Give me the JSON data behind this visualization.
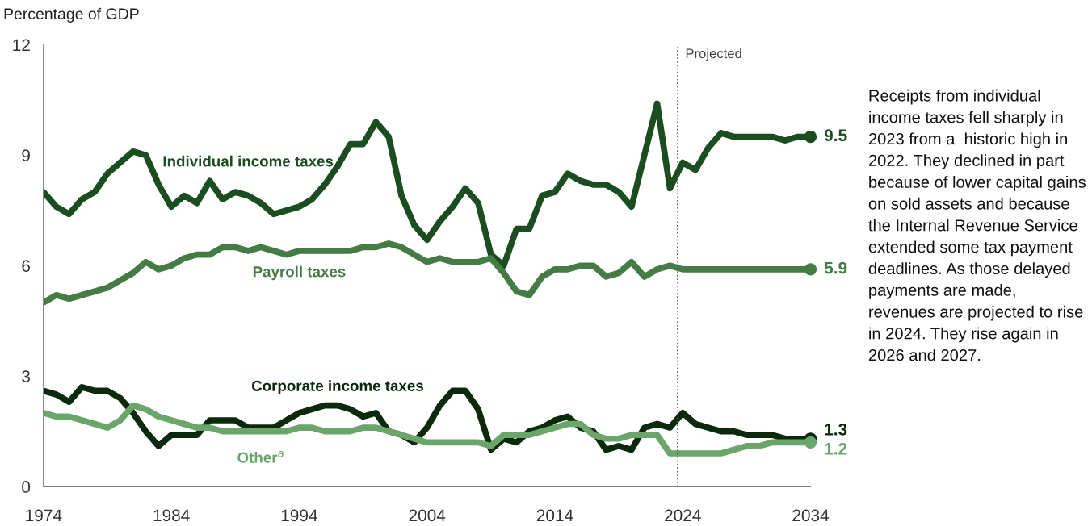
{
  "chart_data": {
    "type": "line",
    "ylabel": "Percentage of GDP",
    "x": [
      1974,
      1975,
      1976,
      1977,
      1978,
      1979,
      1980,
      1981,
      1982,
      1983,
      1984,
      1985,
      1986,
      1987,
      1988,
      1989,
      1990,
      1991,
      1992,
      1993,
      1994,
      1995,
      1996,
      1997,
      1998,
      1999,
      2000,
      2001,
      2002,
      2003,
      2004,
      2005,
      2006,
      2007,
      2008,
      2009,
      2010,
      2011,
      2012,
      2013,
      2014,
      2015,
      2016,
      2017,
      2018,
      2019,
      2020,
      2021,
      2022,
      2023,
      2024,
      2025,
      2026,
      2027,
      2028,
      2029,
      2030,
      2031,
      2032,
      2033,
      2034
    ],
    "series": [
      {
        "name": "Individual income taxes",
        "color": "#1a4d1f",
        "values": [
          8.0,
          7.6,
          7.4,
          7.8,
          8.0,
          8.5,
          8.8,
          9.1,
          9.0,
          8.2,
          7.6,
          7.9,
          7.7,
          8.3,
          7.8,
          8.0,
          7.9,
          7.7,
          7.4,
          7.5,
          7.6,
          7.8,
          8.2,
          8.7,
          9.3,
          9.3,
          9.9,
          9.5,
          7.9,
          7.1,
          6.7,
          7.2,
          7.6,
          8.1,
          7.7,
          6.3,
          6.0,
          7.0,
          7.0,
          7.9,
          8.0,
          8.5,
          8.3,
          8.2,
          8.2,
          8.0,
          7.6,
          9.0,
          10.4,
          8.1,
          8.8,
          8.6,
          9.2,
          9.6,
          9.5,
          9.5,
          9.5,
          9.5,
          9.4,
          9.5,
          9.5
        ],
        "value_labels": [
          null,
          null,
          null,
          null,
          null,
          null,
          null,
          null,
          null,
          null,
          null,
          null,
          null,
          null,
          null,
          null,
          null,
          null,
          null,
          null,
          null,
          null,
          null,
          null,
          null,
          null,
          null,
          null,
          null,
          null,
          null,
          null,
          null,
          null,
          null,
          null,
          null,
          null,
          null,
          null,
          null,
          null,
          null,
          null,
          null,
          null,
          null,
          null,
          null,
          null,
          null,
          null,
          null,
          null,
          null,
          null,
          null,
          null,
          null,
          null,
          "9.5"
        ]
      },
      {
        "name": "Payroll taxes",
        "color": "#457b45",
        "values": [
          5.0,
          5.2,
          5.1,
          5.2,
          5.3,
          5.4,
          5.6,
          5.8,
          6.1,
          5.9,
          6.0,
          6.2,
          6.3,
          6.3,
          6.5,
          6.5,
          6.4,
          6.5,
          6.4,
          6.3,
          6.4,
          6.4,
          6.4,
          6.4,
          6.4,
          6.5,
          6.5,
          6.6,
          6.5,
          6.3,
          6.1,
          6.2,
          6.1,
          6.1,
          6.1,
          6.2,
          5.8,
          5.3,
          5.2,
          5.7,
          5.9,
          5.9,
          6.0,
          6.0,
          5.7,
          5.8,
          6.1,
          5.7,
          5.9,
          6.0,
          5.9,
          5.9,
          5.9,
          5.9,
          5.9,
          5.9,
          5.9,
          5.9,
          5.9,
          5.9,
          5.9
        ],
        "value_labels": [
          null,
          null,
          null,
          null,
          null,
          null,
          null,
          null,
          null,
          null,
          null,
          null,
          null,
          null,
          null,
          null,
          null,
          null,
          null,
          null,
          null,
          null,
          null,
          null,
          null,
          null,
          null,
          null,
          null,
          null,
          null,
          null,
          null,
          null,
          null,
          null,
          null,
          null,
          null,
          null,
          null,
          null,
          null,
          null,
          null,
          null,
          null,
          null,
          null,
          null,
          null,
          null,
          null,
          null,
          null,
          null,
          null,
          null,
          null,
          null,
          "5.9"
        ]
      },
      {
        "name": "Corporate income taxes",
        "color": "#0b2a0b",
        "values": [
          2.6,
          2.5,
          2.3,
          2.7,
          2.6,
          2.6,
          2.4,
          2.0,
          1.5,
          1.1,
          1.4,
          1.4,
          1.4,
          1.8,
          1.8,
          1.8,
          1.6,
          1.6,
          1.6,
          1.8,
          2.0,
          2.1,
          2.2,
          2.2,
          2.1,
          1.9,
          2.0,
          1.5,
          1.4,
          1.2,
          1.6,
          2.2,
          2.6,
          2.6,
          2.1,
          1.0,
          1.3,
          1.2,
          1.5,
          1.6,
          1.8,
          1.9,
          1.6,
          1.5,
          1.0,
          1.1,
          1.0,
          1.6,
          1.7,
          1.6,
          2.0,
          1.7,
          1.6,
          1.5,
          1.5,
          1.4,
          1.4,
          1.4,
          1.3,
          1.3,
          1.3
        ],
        "value_labels": [
          null,
          null,
          null,
          null,
          null,
          null,
          null,
          null,
          null,
          null,
          null,
          null,
          null,
          null,
          null,
          null,
          null,
          null,
          null,
          null,
          null,
          null,
          null,
          null,
          null,
          null,
          null,
          null,
          null,
          null,
          null,
          null,
          null,
          null,
          null,
          null,
          null,
          null,
          null,
          null,
          null,
          null,
          null,
          null,
          null,
          null,
          null,
          null,
          null,
          null,
          null,
          null,
          null,
          null,
          null,
          null,
          null,
          null,
          null,
          null,
          "1.3"
        ]
      },
      {
        "name": "Other$^{a}$",
        "color": "#6aa56a",
        "values": [
          2.0,
          1.9,
          1.9,
          1.8,
          1.7,
          1.6,
          1.8,
          2.2,
          2.1,
          1.9,
          1.8,
          1.7,
          1.6,
          1.6,
          1.5,
          1.5,
          1.5,
          1.5,
          1.5,
          1.5,
          1.6,
          1.6,
          1.5,
          1.5,
          1.5,
          1.6,
          1.6,
          1.5,
          1.4,
          1.3,
          1.2,
          1.2,
          1.2,
          1.2,
          1.2,
          1.1,
          1.4,
          1.4,
          1.4,
          1.5,
          1.6,
          1.7,
          1.7,
          1.4,
          1.3,
          1.3,
          1.4,
          1.4,
          1.4,
          0.9,
          0.9,
          0.9,
          0.9,
          0.9,
          1.0,
          1.1,
          1.1,
          1.2,
          1.2,
          1.2,
          1.2
        ],
        "value_labels": [
          null,
          null,
          null,
          null,
          null,
          null,
          null,
          null,
          null,
          null,
          null,
          null,
          null,
          null,
          null,
          null,
          null,
          null,
          null,
          null,
          null,
          null,
          null,
          null,
          null,
          null,
          null,
          null,
          null,
          null,
          null,
          null,
          null,
          null,
          null,
          null,
          null,
          null,
          null,
          null,
          null,
          null,
          null,
          null,
          null,
          null,
          null,
          null,
          null,
          null,
          null,
          null,
          null,
          null,
          null,
          null,
          null,
          null,
          null,
          null,
          "1.2"
        ]
      }
    ],
    "xlim": [
      1974,
      2034
    ],
    "xticks": [
      1974,
      1984,
      1994,
      2004,
      2014,
      2024,
      2034
    ],
    "ylim": [
      0,
      12
    ],
    "yticks": [
      0,
      3,
      6,
      9,
      12
    ],
    "grid": false,
    "legend": false,
    "ref_lines": [
      {
        "axis": "x",
        "value": 2023.6,
        "label": "Projected",
        "color": "#555555",
        "line_style": "dotted"
      }
    ],
    "annotations": [
      "Receipts from individual income taxes fell sharply in 2023 from a  historic high in 2022. They declined in part because of lower capital gains on sold assets and because the Internal Revenue Service extended some tax payment deadlines. As those delayed payments are made, revenues are projected to rise in 2024. They rise again in 2026 and 2027."
    ]
  }
}
